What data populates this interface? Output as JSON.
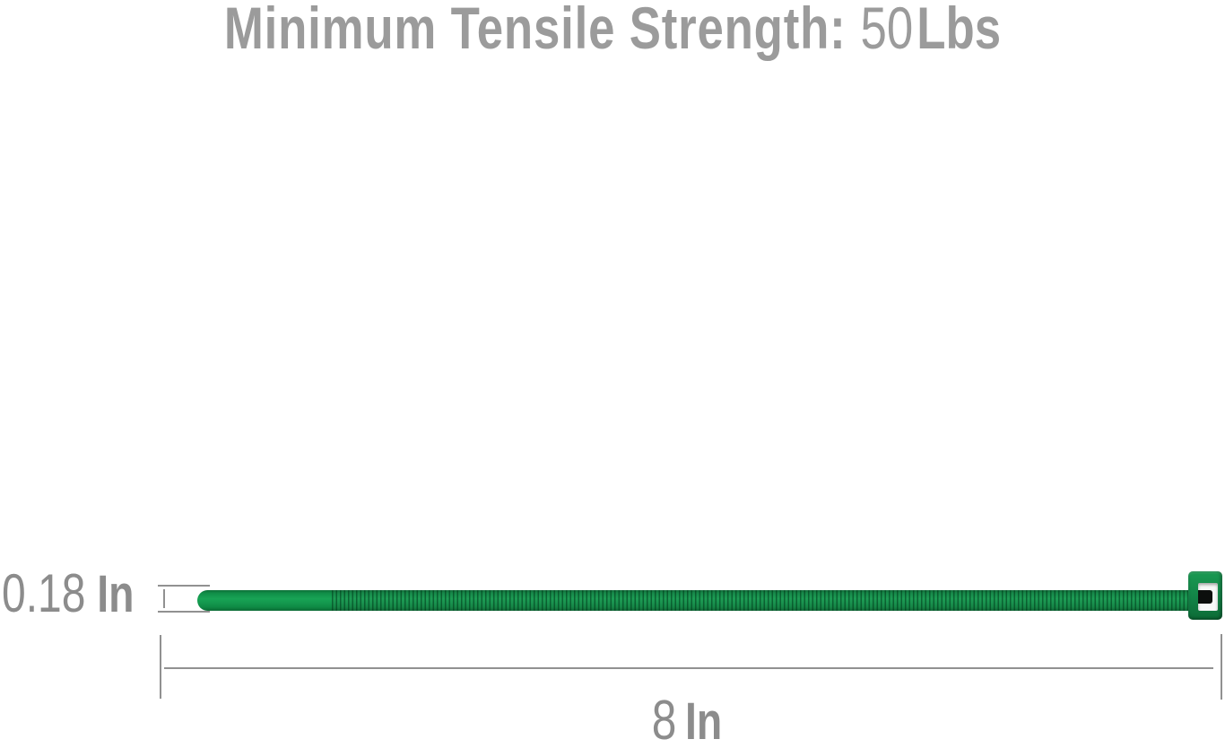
{
  "title": {
    "label": "Minimum Tensile Strength:",
    "value": "50",
    "unit": "Lbs"
  },
  "dimensions": {
    "width": {
      "value": "0.18",
      "unit": "In"
    },
    "length": {
      "value": "8",
      "unit": "In"
    }
  },
  "illustration": {
    "name": "green-nylon-cable-zip-tie"
  },
  "colors": {
    "tie_green": "#12914a",
    "tie_green_dark": "#0b6e36",
    "dimension_line_gray": "#919191",
    "title_gray": "#9b9b9b",
    "dimension_text_gray": "#8c8c8c",
    "slot_pawl_black": "#0c0f0d",
    "background": "#ffffff"
  }
}
